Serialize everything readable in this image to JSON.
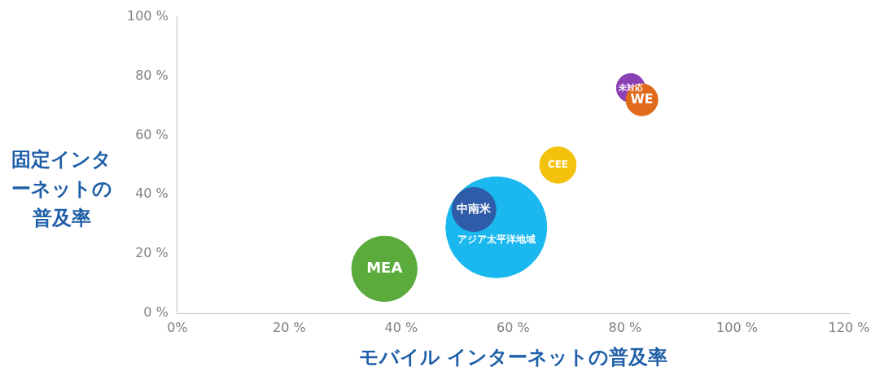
{
  "chart_data": {
    "type": "bubble",
    "xlabel": "モバイル インターネットの普及率",
    "ylabel": "固定インターネットの普及率",
    "xlim": [
      0,
      120
    ],
    "xticks": [
      {
        "value": 0,
        "label": "0%"
      },
      {
        "value": 20,
        "label": "20 %"
      },
      {
        "value": 40,
        "label": "40 %"
      },
      {
        "value": 60,
        "label": "60 %"
      },
      {
        "value": 80,
        "label": "80 %"
      },
      {
        "value": 100,
        "label": "100 %"
      },
      {
        "value": 120,
        "label": "120 %"
      }
    ],
    "ylim": [
      0,
      100
    ],
    "yticks": [
      {
        "value": 0,
        "label": "0 %"
      },
      {
        "value": 20,
        "label": "20 %"
      },
      {
        "value": 40,
        "label": "40 %"
      },
      {
        "value": 60,
        "label": "60 %"
      },
      {
        "value": 80,
        "label": "80 %"
      },
      {
        "value": 100,
        "label": "100 %"
      }
    ],
    "grid": false,
    "legend": false,
    "series": [
      {
        "name": "MEA",
        "color": "#5aaa3c",
        "x": [
          37
        ],
        "values": [
          15
        ],
        "sizes": [
          0.42
        ]
      },
      {
        "name": "アジア太平洋地域",
        "color": "#1ab8ef",
        "x": [
          57
        ],
        "values": [
          29
        ],
        "sizes": [
          1
        ]
      },
      {
        "name": "中南米",
        "color": "#2e5ca8",
        "x": [
          53
        ],
        "values": [
          35
        ],
        "sizes": [
          0.19
        ]
      },
      {
        "name": "CEE",
        "color": "#f4c20d",
        "x": [
          68
        ],
        "values": [
          50
        ],
        "sizes": [
          0.13
        ]
      },
      {
        "name": "未対応",
        "color": "#8a3fb5",
        "x": [
          81
        ],
        "values": [
          76
        ],
        "sizes": [
          0.08
        ]
      },
      {
        "name": "WE",
        "color": "#e06a1c",
        "x": [
          83
        ],
        "values": [
          72
        ],
        "sizes": [
          0.1
        ]
      }
    ]
  }
}
